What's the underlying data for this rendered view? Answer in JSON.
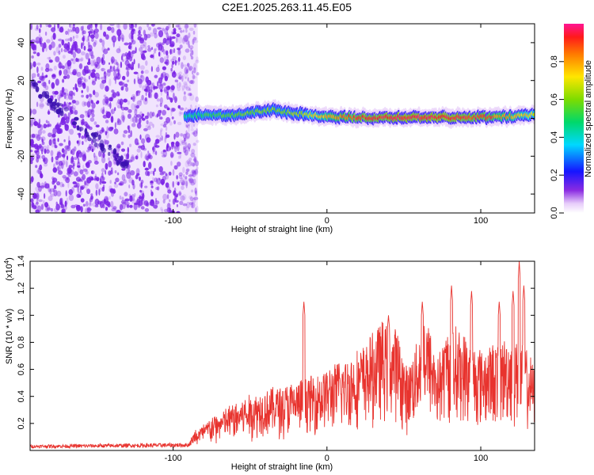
{
  "title": "C2E1.2025.263.11.45.E05",
  "colors": {
    "snr_line": "#e8332e",
    "speck": "#7a22e6",
    "frame": "#000000"
  },
  "chart_data": [
    {
      "type": "heatmap",
      "name": "spectrogram",
      "xlabel": "Height of straight line (km)",
      "ylabel": "Frequency (Hz)",
      "xlim": [
        -193,
        135
      ],
      "ylim": [
        -50,
        50
      ],
      "xticks": [
        -100,
        0,
        100
      ],
      "yticks": [
        -40,
        -20,
        0,
        20,
        40
      ],
      "noise_region_km": [
        -193,
        -84
      ],
      "noise_diagonal": {
        "start": [
          -193,
          18
        ],
        "end": [
          -130,
          -25
        ]
      },
      "signal_region_km": [
        -92,
        135
      ],
      "signal_trace": [
        {
          "x": -92,
          "y": 1,
          "amp": 0.45
        },
        {
          "x": -80,
          "y": 2,
          "amp": 0.5
        },
        {
          "x": -60,
          "y": 1.5,
          "amp": 0.55
        },
        {
          "x": -45,
          "y": 3.5,
          "amp": 0.6
        },
        {
          "x": -35,
          "y": 4.5,
          "amp": 0.6
        },
        {
          "x": -20,
          "y": 2.5,
          "amp": 0.62
        },
        {
          "x": 0,
          "y": 1,
          "amp": 0.8
        },
        {
          "x": 20,
          "y": 0.5,
          "amp": 0.9
        },
        {
          "x": 50,
          "y": 0.5,
          "amp": 0.95
        },
        {
          "x": 80,
          "y": 0.5,
          "amp": 0.95
        },
        {
          "x": 100,
          "y": 0.5,
          "amp": 0.9
        },
        {
          "x": 120,
          "y": 1,
          "amp": 0.8
        },
        {
          "x": 135,
          "y": 2,
          "amp": 0.7
        }
      ],
      "colorbar": {
        "label": "Normalized spectral amplitude",
        "range": [
          0,
          1
        ],
        "ticks": [
          "0.0",
          "0.2",
          "0.4",
          "0.6",
          "0.8"
        ]
      }
    },
    {
      "type": "line",
      "name": "snr",
      "xlabel": "Height of straight line (km)",
      "ylabel": "SNR (10 * v/v)",
      "scale_label": "(x10",
      "scale_exp": "4",
      "scale_close": ")",
      "xlim": [
        -193,
        135
      ],
      "ylim": [
        0,
        1.4
      ],
      "xticks": [
        -100,
        0,
        100
      ],
      "yticks": [
        "0.2",
        "0.4",
        "0.6",
        "0.8",
        "1.0",
        "1.2",
        "1.4"
      ],
      "envelope": [
        {
          "x": -193,
          "y": 0.03
        },
        {
          "x": -90,
          "y": 0.04
        },
        {
          "x": -80,
          "y": 0.2
        },
        {
          "x": -60,
          "y": 0.35
        },
        {
          "x": -40,
          "y": 0.45
        },
        {
          "x": -20,
          "y": 0.5
        },
        {
          "x": 0,
          "y": 0.6
        },
        {
          "x": 15,
          "y": 0.7
        },
        {
          "x": 25,
          "y": 0.78
        },
        {
          "x": 35,
          "y": 0.95
        },
        {
          "x": 45,
          "y": 0.92
        },
        {
          "x": 52,
          "y": 0.6
        },
        {
          "x": 58,
          "y": 0.8
        },
        {
          "x": 63,
          "y": 1.05
        },
        {
          "x": 72,
          "y": 0.7
        },
        {
          "x": 80,
          "y": 0.95
        },
        {
          "x": 90,
          "y": 0.85
        },
        {
          "x": 100,
          "y": 0.75
        },
        {
          "x": 110,
          "y": 0.8
        },
        {
          "x": 120,
          "y": 0.85
        },
        {
          "x": 130,
          "y": 0.75
        },
        {
          "x": 135,
          "y": 0.6
        }
      ],
      "peaks": [
        {
          "x": -15,
          "y": 1.1
        },
        {
          "x": 40,
          "y": 1.0
        },
        {
          "x": 62,
          "y": 1.1
        },
        {
          "x": 81,
          "y": 1.22
        },
        {
          "x": 94,
          "y": 1.18
        },
        {
          "x": 112,
          "y": 1.1
        },
        {
          "x": 121,
          "y": 1.18
        },
        {
          "x": 125,
          "y": 1.4
        },
        {
          "x": 128,
          "y": 1.22
        }
      ]
    }
  ]
}
